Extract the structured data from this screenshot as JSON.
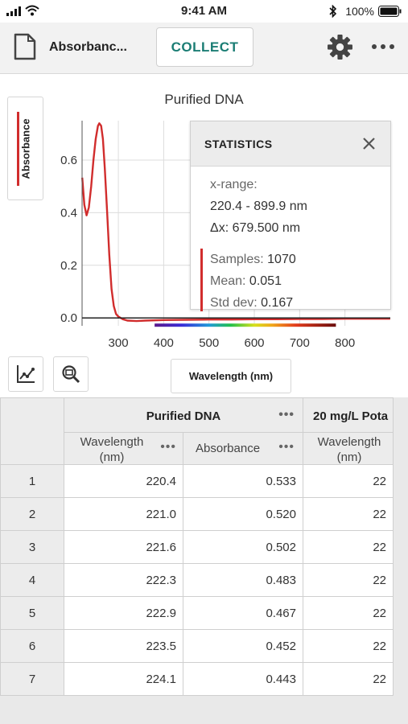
{
  "status_bar": {
    "time": "9:41 AM",
    "battery": "100%"
  },
  "toolbar": {
    "file_title": "Absorbanc...",
    "collect_label": "COLLECT"
  },
  "chart_data": {
    "type": "line",
    "title": "Purified DNA",
    "ylabel": "Absorbance",
    "xlabel": "Wavelength (nm)",
    "xlim": [
      220,
      900
    ],
    "ylim": [
      -0.03,
      0.75
    ],
    "xticks": [
      300,
      400,
      500,
      600,
      700,
      800
    ],
    "yticks": [
      0.0,
      0.2,
      0.4,
      0.6
    ],
    "ytick_labels": [
      "0.0",
      "0.2",
      "0.4",
      "0.6"
    ],
    "series": [
      {
        "color": "#d12d2d",
        "x": [
          220.4,
          225,
          230,
          235,
          240,
          245,
          250,
          255,
          258,
          262,
          266,
          270,
          275,
          280,
          285,
          290,
          295,
          300,
          305,
          310,
          320,
          340,
          360,
          400,
          450,
          500,
          550,
          600,
          650,
          700,
          750,
          800,
          850,
          899.9
        ],
        "y": [
          0.533,
          0.43,
          0.39,
          0.42,
          0.5,
          0.6,
          0.68,
          0.73,
          0.74,
          0.73,
          0.68,
          0.57,
          0.41,
          0.24,
          0.11,
          0.045,
          0.015,
          0.005,
          0.0,
          -0.005,
          -0.01,
          -0.012,
          -0.01,
          -0.008,
          -0.007,
          -0.006,
          -0.006,
          -0.005,
          -0.005,
          -0.004,
          -0.004,
          -0.003,
          -0.003,
          -0.003
        ]
      }
    ],
    "grid": true
  },
  "statistics": {
    "title": "STATISTICS",
    "xrange_label": "x-range:",
    "xrange_value": "220.4 - 899.9 nm",
    "dx": "Δx: 679.500 nm",
    "samples_label": "Samples:",
    "samples_value": "1070",
    "mean_label": "Mean:",
    "mean_value": "0.051",
    "std_label": "Std dev:",
    "std_value": "0.167"
  },
  "table": {
    "groups": [
      {
        "name": "Purified DNA",
        "columns": [
          "Wavelength (nm)",
          "Absorbance"
        ]
      },
      {
        "name": "20 mg/L Pota",
        "columns": [
          "Wavelength (nm)"
        ]
      }
    ],
    "rows": [
      {
        "n": "1",
        "wl": "220.4",
        "abs": "0.533",
        "c3": "22"
      },
      {
        "n": "2",
        "wl": "221.0",
        "abs": "0.520",
        "c3": "22"
      },
      {
        "n": "3",
        "wl": "221.6",
        "abs": "0.502",
        "c3": "22"
      },
      {
        "n": "4",
        "wl": "222.3",
        "abs": "0.483",
        "c3": "22"
      },
      {
        "n": "5",
        "wl": "222.9",
        "abs": "0.467",
        "c3": "22"
      },
      {
        "n": "6",
        "wl": "223.5",
        "abs": "0.452",
        "c3": "22"
      },
      {
        "n": "7",
        "wl": "224.1",
        "abs": "0.443",
        "c3": "22"
      }
    ]
  },
  "icons": [
    "signal-icon",
    "wifi-icon",
    "bluetooth-icon",
    "battery-icon",
    "document-icon",
    "gear-icon",
    "more-icon",
    "close-icon",
    "graph-options-icon",
    "zoom-icon",
    "column-menu-icon"
  ],
  "colors": {
    "accent": "#1b7d74",
    "series": "#d12d2d"
  }
}
